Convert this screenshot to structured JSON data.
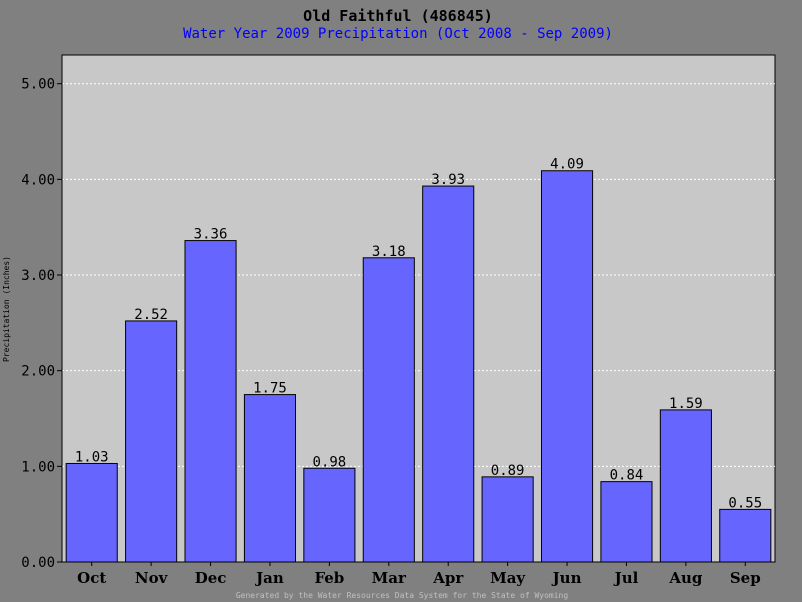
{
  "chart_data": {
    "type": "bar",
    "title": "Old Faithful (486845)",
    "subtitle": "Water Year 2009 Precipitation (Oct 2008 - Sep 2009)",
    "xlabel": "",
    "ylabel": "Precipitation (Inches)",
    "footer": "Generated by the Water Resources Data System for the State of Wyoming",
    "categories": [
      "Oct",
      "Nov",
      "Dec",
      "Jan",
      "Feb",
      "Mar",
      "Apr",
      "May",
      "Jun",
      "Jul",
      "Aug",
      "Sep"
    ],
    "values": [
      1.03,
      2.52,
      3.36,
      1.75,
      0.98,
      3.18,
      3.93,
      0.89,
      4.09,
      0.84,
      1.59,
      0.55
    ],
    "value_labels": [
      "1.03",
      "2.52",
      "3.36",
      "1.75",
      "0.98",
      "3.18",
      "3.93",
      "0.89",
      "4.09",
      "0.84",
      "1.59",
      "0.55"
    ],
    "ylim": [
      0,
      5.3
    ],
    "yticks": [
      0,
      1,
      2,
      3,
      4,
      5
    ],
    "ytick_labels": [
      "0.00",
      "1.00",
      "2.00",
      "3.00",
      "4.00",
      "5.00"
    ],
    "grid": true,
    "colors": {
      "background": "#808080",
      "plot_background": "#c8c8c8",
      "bar_fill": "#6666ff",
      "bar_stroke": "#000000",
      "title": "#000000",
      "subtitle": "#0000ff",
      "footer": "#c0c0c0",
      "grid": "#ffffff"
    }
  }
}
